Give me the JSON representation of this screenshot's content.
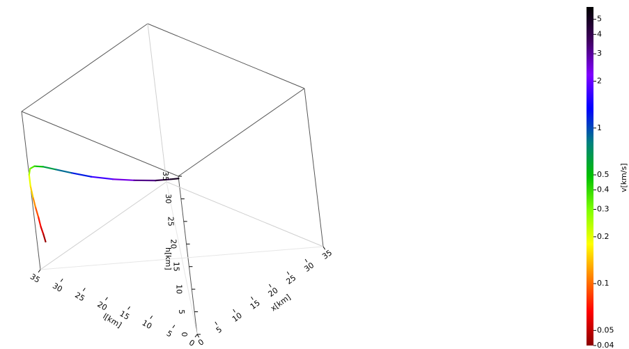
{
  "chart_data": {
    "type": "scatter",
    "subtype": "3d-trajectory",
    "title": "",
    "axes": {
      "x": {
        "label": "x[km]",
        "range": [
          0,
          35
        ],
        "ticks": [
          0,
          5,
          10,
          15,
          20,
          25,
          30,
          35
        ]
      },
      "l": {
        "label": "l[km]",
        "range": [
          0,
          35
        ],
        "ticks": [
          0,
          5,
          10,
          15,
          20,
          25,
          30,
          35
        ]
      },
      "h": {
        "label": "h[km]",
        "range": [
          0,
          35
        ],
        "ticks": [
          0,
          5,
          10,
          15,
          20,
          25,
          30,
          35
        ]
      }
    },
    "grid": true,
    "colorbar": {
      "label": "v[km/s]",
      "scale": "log",
      "range": [
        0.04,
        6
      ],
      "colormap": [
        "#8b0000",
        "#ff0000",
        "#ff8000",
        "#ffff00",
        "#80ff00",
        "#00c000",
        "#008080",
        "#0000ff",
        "#8000ff",
        "#400060",
        "#000000"
      ],
      "ticks": [
        {
          "value": 0.04,
          "label": "0.04"
        },
        {
          "value": 0.05,
          "label": "0.05"
        },
        {
          "value": 0.1,
          "label": "0.1"
        },
        {
          "value": 0.2,
          "label": "0.2"
        },
        {
          "value": 0.3,
          "label": "0.3"
        },
        {
          "value": 0.4,
          "label": "0.4"
        },
        {
          "value": 0.5,
          "label": "0.5"
        },
        {
          "value": 1,
          "label": "1"
        },
        {
          "value": 2,
          "label": "2"
        },
        {
          "value": 3,
          "label": "3"
        },
        {
          "value": 4,
          "label": "4"
        },
        {
          "value": 5,
          "label": "5"
        }
      ]
    },
    "trajectory": [
      {
        "x": 0.0,
        "l": 33.0,
        "h": 7.0,
        "v": 0.04
      },
      {
        "x": 0.0,
        "l": 33.3,
        "h": 8.5,
        "v": 0.05
      },
      {
        "x": 0.0,
        "l": 33.7,
        "h": 10.0,
        "v": 0.06
      },
      {
        "x": 0.0,
        "l": 34.0,
        "h": 12.0,
        "v": 0.08
      },
      {
        "x": 0.0,
        "l": 34.4,
        "h": 14.0,
        "v": 0.1
      },
      {
        "x": 0.0,
        "l": 34.7,
        "h": 16.0,
        "v": 0.13
      },
      {
        "x": 0.0,
        "l": 35.0,
        "h": 18.5,
        "v": 0.17
      },
      {
        "x": 0.0,
        "l": 35.0,
        "h": 21.0,
        "v": 0.22
      },
      {
        "x": 0.0,
        "l": 34.6,
        "h": 22.5,
        "v": 0.3
      },
      {
        "x": 0.0,
        "l": 33.5,
        "h": 23.5,
        "v": 0.4
      },
      {
        "x": 0.0,
        "l": 31.5,
        "h": 24.2,
        "v": 0.55
      },
      {
        "x": 0.0,
        "l": 28.5,
        "h": 24.8,
        "v": 0.75
      },
      {
        "x": 0.0,
        "l": 25.0,
        "h": 25.5,
        "v": 1.0
      },
      {
        "x": 0.0,
        "l": 20.5,
        "h": 26.5,
        "v": 1.4
      },
      {
        "x": 0.0,
        "l": 15.5,
        "h": 28.0,
        "v": 2.0
      },
      {
        "x": 0.0,
        "l": 10.5,
        "h": 29.8,
        "v": 2.8
      },
      {
        "x": 0.0,
        "l": 5.5,
        "h": 31.8,
        "v": 3.6
      },
      {
        "x": 0.0,
        "l": 2.0,
        "h": 33.5,
        "v": 4.6
      },
      {
        "x": 0.0,
        "l": 0.0,
        "h": 34.5,
        "v": 5.5
      }
    ]
  }
}
